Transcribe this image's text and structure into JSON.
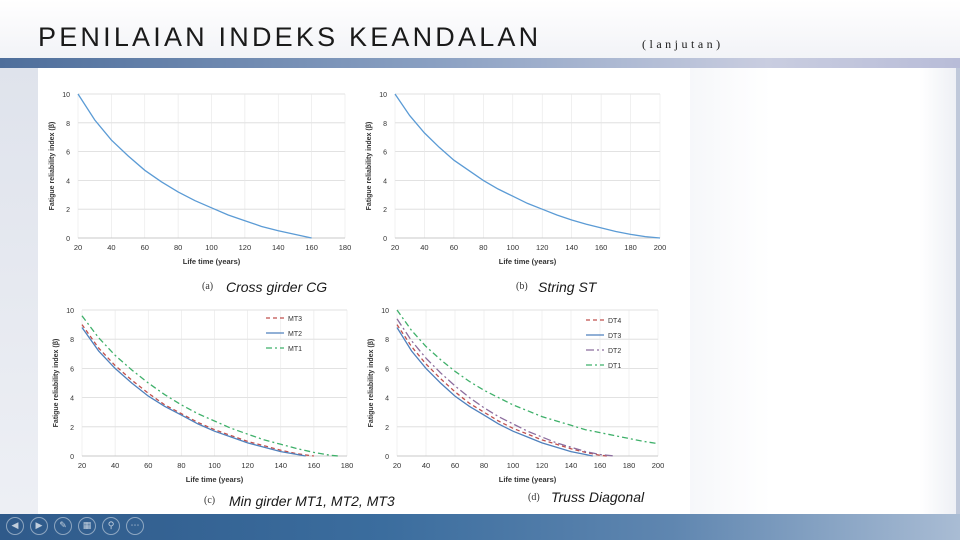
{
  "slide": {
    "title": "PENILAIAN INDEKS KEANDALAN",
    "subtitle": "(lanjutan)"
  },
  "captions": {
    "a": {
      "letter": "(a)",
      "text": "Cross girder CG"
    },
    "b": {
      "letter": "(b)",
      "text": "String ST"
    },
    "c": {
      "letter": "(c)",
      "text": "Min girder MT1, MT2, MT3"
    },
    "d": {
      "letter": "(d)",
      "text": "Truss Diagonal"
    }
  },
  "nav_icons": [
    "prev-icon",
    "next-icon",
    "pen-icon",
    "slides-icon",
    "zoom-icon",
    "more-icon"
  ],
  "chart_data": [
    {
      "type": "line",
      "xlabel": "Life time (years)",
      "ylabel": "Fatigue reliability index (β)",
      "xlim": [
        20,
        180
      ],
      "ylim": [
        0,
        10
      ],
      "xticks": [
        20,
        40,
        60,
        80,
        100,
        120,
        140,
        160,
        180
      ],
      "yticks": [
        0,
        2,
        4,
        6,
        8,
        10
      ],
      "grid": true,
      "series": [
        {
          "color": "#5b9bd5",
          "dash": "",
          "x": [
            20,
            30,
            40,
            50,
            60,
            70,
            80,
            90,
            100,
            110,
            120,
            130,
            140,
            150,
            160
          ],
          "y": [
            10,
            8.2,
            6.8,
            5.7,
            4.7,
            3.9,
            3.2,
            2.6,
            2.1,
            1.6,
            1.2,
            0.8,
            0.5,
            0.25,
            0
          ]
        }
      ]
    },
    {
      "type": "line",
      "xlabel": "Life time (years)",
      "ylabel": "Fatigue reliability index (β)",
      "xlim": [
        20,
        200
      ],
      "ylim": [
        0,
        10
      ],
      "xticks": [
        20,
        40,
        60,
        80,
        100,
        120,
        140,
        160,
        180,
        200
      ],
      "yticks": [
        0,
        2,
        4,
        6,
        8,
        10
      ],
      "grid": true,
      "series": [
        {
          "color": "#5b9bd5",
          "dash": "",
          "x": [
            20,
            30,
            40,
            50,
            60,
            70,
            80,
            90,
            100,
            110,
            120,
            130,
            140,
            150,
            160,
            170,
            180,
            190,
            200
          ],
          "y": [
            10,
            8.5,
            7.3,
            6.3,
            5.4,
            4.7,
            4.0,
            3.4,
            2.9,
            2.4,
            2.0,
            1.6,
            1.25,
            0.95,
            0.7,
            0.45,
            0.25,
            0.1,
            0
          ]
        }
      ]
    },
    {
      "type": "line",
      "xlabel": "Life time (years)",
      "ylabel": "Fatigue reliability index (β)",
      "xlim": [
        20,
        180
      ],
      "ylim": [
        0,
        10
      ],
      "xticks": [
        20,
        40,
        60,
        80,
        100,
        120,
        140,
        160,
        180
      ],
      "yticks": [
        0,
        2,
        4,
        6,
        8,
        10
      ],
      "grid": true,
      "legend": "top-right",
      "series": [
        {
          "name": "MT3",
          "color": "#c0504d",
          "dash": "4,3",
          "x": [
            20,
            30,
            40,
            50,
            60,
            70,
            80,
            90,
            100,
            110,
            120,
            130,
            140,
            150,
            160
          ],
          "y": [
            9.0,
            7.4,
            6.2,
            5.2,
            4.3,
            3.5,
            2.9,
            2.3,
            1.8,
            1.4,
            1.0,
            0.7,
            0.4,
            0.15,
            0
          ]
        },
        {
          "name": "MT2",
          "color": "#4f81bd",
          "dash": "",
          "x": [
            20,
            30,
            40,
            50,
            60,
            70,
            80,
            90,
            100,
            110,
            120,
            130,
            140,
            150,
            155
          ],
          "y": [
            8.8,
            7.2,
            6.0,
            5.0,
            4.1,
            3.4,
            2.8,
            2.2,
            1.7,
            1.3,
            0.9,
            0.6,
            0.3,
            0.1,
            0
          ]
        },
        {
          "name": "MT1",
          "color": "#3fb06a",
          "dash": "6,3,2,3",
          "x": [
            20,
            30,
            40,
            50,
            60,
            70,
            80,
            90,
            100,
            110,
            120,
            130,
            140,
            150,
            160,
            170,
            175
          ],
          "y": [
            9.6,
            8.1,
            6.9,
            5.9,
            5.0,
            4.2,
            3.5,
            2.9,
            2.4,
            1.9,
            1.5,
            1.1,
            0.8,
            0.5,
            0.25,
            0.05,
            0
          ]
        }
      ]
    },
    {
      "type": "line",
      "xlabel": "Life time (years)",
      "ylabel": "Fatigue reliability index (β)",
      "xlim": [
        20,
        200
      ],
      "ylim": [
        0,
        10
      ],
      "xticks": [
        20,
        40,
        60,
        80,
        100,
        120,
        140,
        160,
        180,
        200
      ],
      "yticks": [
        0,
        2,
        4,
        6,
        8,
        10
      ],
      "grid": true,
      "legend": "top-right",
      "series": [
        {
          "name": "DT4",
          "color": "#c0504d",
          "dash": "4,3",
          "x": [
            20,
            30,
            40,
            50,
            60,
            70,
            80,
            90,
            100,
            110,
            120,
            130,
            140,
            150,
            160,
            165
          ],
          "y": [
            9.0,
            7.5,
            6.3,
            5.3,
            4.4,
            3.6,
            3.0,
            2.4,
            1.9,
            1.5,
            1.1,
            0.8,
            0.5,
            0.25,
            0.05,
            0
          ]
        },
        {
          "name": "DT3",
          "color": "#4f81bd",
          "dash": "",
          "x": [
            20,
            30,
            40,
            50,
            60,
            70,
            80,
            90,
            100,
            110,
            120,
            130,
            140,
            150,
            155
          ],
          "y": [
            8.8,
            7.2,
            6.0,
            5.0,
            4.1,
            3.4,
            2.8,
            2.2,
            1.7,
            1.3,
            0.9,
            0.6,
            0.3,
            0.1,
            0
          ]
        },
        {
          "name": "DT2",
          "color": "#8c6d9e",
          "dash": "8,3,2,3",
          "x": [
            20,
            30,
            40,
            50,
            60,
            70,
            80,
            90,
            100,
            110,
            120,
            130,
            140,
            150,
            160,
            170
          ],
          "y": [
            9.4,
            7.9,
            6.7,
            5.7,
            4.8,
            4.0,
            3.3,
            2.7,
            2.2,
            1.7,
            1.3,
            0.9,
            0.6,
            0.3,
            0.1,
            0
          ]
        },
        {
          "name": "DT1",
          "color": "#3fb06a",
          "dash": "6,3,2,3",
          "x": [
            20,
            30,
            40,
            50,
            60,
            70,
            80,
            90,
            100,
            110,
            120,
            130,
            140,
            150,
            160,
            170,
            180,
            190,
            200
          ],
          "y": [
            10,
            8.6,
            7.5,
            6.6,
            5.8,
            5.1,
            4.5,
            4.0,
            3.5,
            3.1,
            2.7,
            2.4,
            2.1,
            1.8,
            1.6,
            1.4,
            1.2,
            1.0,
            0.85
          ]
        }
      ]
    }
  ]
}
